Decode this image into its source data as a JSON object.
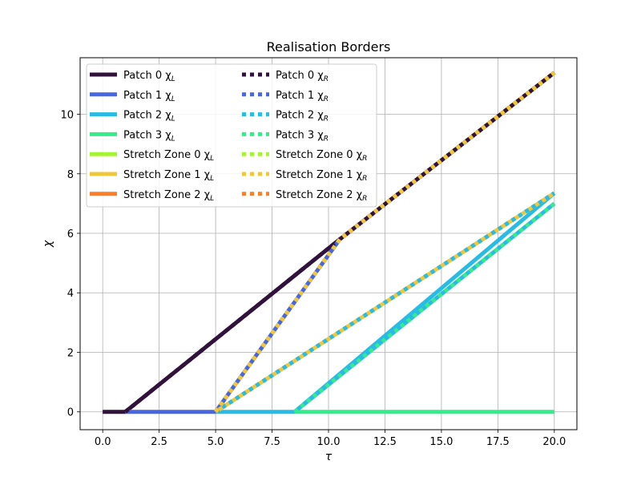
{
  "chart_data": {
    "type": "line",
    "title": "Realisation Borders",
    "xlabel": "τ",
    "ylabel": "χ",
    "xlim": [
      -1.0,
      21.0
    ],
    "ylim": [
      -0.6,
      11.9
    ],
    "xticks": [
      0.0,
      2.5,
      5.0,
      7.5,
      10.0,
      12.5,
      15.0,
      17.5,
      20.0
    ],
    "xtick_labels": [
      "0.0",
      "2.5",
      "5.0",
      "7.5",
      "10.0",
      "12.5",
      "15.0",
      "17.5",
      "20.0"
    ],
    "yticks": [
      0,
      2,
      4,
      6,
      8,
      10
    ],
    "ytick_labels": [
      "0",
      "2",
      "4",
      "6",
      "8",
      "10"
    ],
    "grid": true,
    "legend_placement": "top-left",
    "legend_columns": 2,
    "series": [
      {
        "name": "Patch 0 χ_L",
        "base": "Patch 0 χ",
        "sub": "L",
        "color": "#30123b",
        "style": "solid",
        "x": [
          0,
          1.0,
          10.5,
          20
        ],
        "y": [
          0,
          0,
          5.8,
          11.4
        ]
      },
      {
        "name": "Patch 1 χ_L",
        "base": "Patch 1 χ",
        "sub": "L",
        "color": "#4667df",
        "style": "solid",
        "x": [
          1.0,
          5.0,
          10.5
        ],
        "y": [
          0,
          0,
          5.8
        ]
      },
      {
        "name": "Patch 2 χ_L",
        "base": "Patch 2 χ",
        "sub": "L",
        "color": "#27bbe5",
        "style": "solid",
        "x": [
          5.0,
          8.5,
          20
        ],
        "y": [
          0,
          0,
          7.35
        ]
      },
      {
        "name": "Patch 3 χ_L",
        "base": "Patch 3 χ",
        "sub": "L",
        "color": "#35ec8c",
        "style": "solid",
        "x": [
          8.5,
          20
        ],
        "y": [
          0,
          0
        ]
      },
      {
        "name": "Stretch Zone 0 χ_L",
        "base": "Stretch Zone 0 χ",
        "sub": "L",
        "color": "#a4f434",
        "style": "solid",
        "x": [],
        "y": []
      },
      {
        "name": "Stretch Zone 1 χ_L",
        "base": "Stretch Zone 1 χ",
        "sub": "L",
        "color": "#f1c73a",
        "style": "solid",
        "x": [
          5.0,
          20
        ],
        "y": [
          0,
          7.35
        ]
      },
      {
        "name": "Stretch Zone 2 χ_L",
        "base": "Stretch Zone 2 χ",
        "sub": "L",
        "color": "#fb7d24",
        "style": "solid",
        "x": [],
        "y": []
      },
      {
        "name": "Patch 0 χ_R",
        "base": "Patch 0 χ",
        "sub": "R",
        "color": "#30123b",
        "style": "dotted",
        "x": [
          1.0,
          10.5,
          20
        ],
        "y": [
          0,
          5.8,
          11.4
        ]
      },
      {
        "name": "Patch 1 χ_R",
        "base": "Patch 1 χ",
        "sub": "R",
        "color": "#4667df",
        "style": "dotted",
        "x": [
          5.0,
          10.5
        ],
        "y": [
          0,
          5.8
        ]
      },
      {
        "name": "Patch 2 χ_R",
        "base": "Patch 2 χ",
        "sub": "R",
        "color": "#27bbe5",
        "style": "dotted",
        "x": [
          5.0,
          20
        ],
        "y": [
          0,
          7.35
        ]
      },
      {
        "name": "Patch 3 χ_R",
        "base": "Patch 3 χ",
        "sub": "R",
        "color": "#35ec8c",
        "style": "dotted",
        "x": [
          8.5,
          20
        ],
        "y": [
          0,
          7.0
        ]
      },
      {
        "name": "Stretch Zone 0 χ_R",
        "base": "Stretch Zone 0 χ",
        "sub": "R",
        "color": "#a4f434",
        "style": "dotted",
        "x": [],
        "y": []
      },
      {
        "name": "Stretch Zone 1 χ_R",
        "base": "Stretch Zone 1 χ",
        "sub": "R",
        "color": "#f1c73a",
        "style": "dotted",
        "x": [
          5.0,
          10.5,
          20
        ],
        "y": [
          0,
          5.8,
          11.4
        ]
      },
      {
        "name": "Stretch Zone 2 χ_R",
        "base": "Stretch Zone 2 χ",
        "sub": "R",
        "color": "#fb7d24",
        "style": "dotted",
        "x": [],
        "y": []
      }
    ],
    "extra_segments": [
      {
        "name": "Stretch Zone 1 χ_L",
        "color": "#f1c73a",
        "style": "dotted",
        "x": [
          5.0,
          20
        ],
        "y": [
          0,
          7.35
        ]
      },
      {
        "name": "Patch 3 χ_L",
        "color": "#27bbe5",
        "style": "solid",
        "x": [
          8.5,
          20
        ],
        "y": [
          0,
          7.0
        ]
      }
    ]
  }
}
